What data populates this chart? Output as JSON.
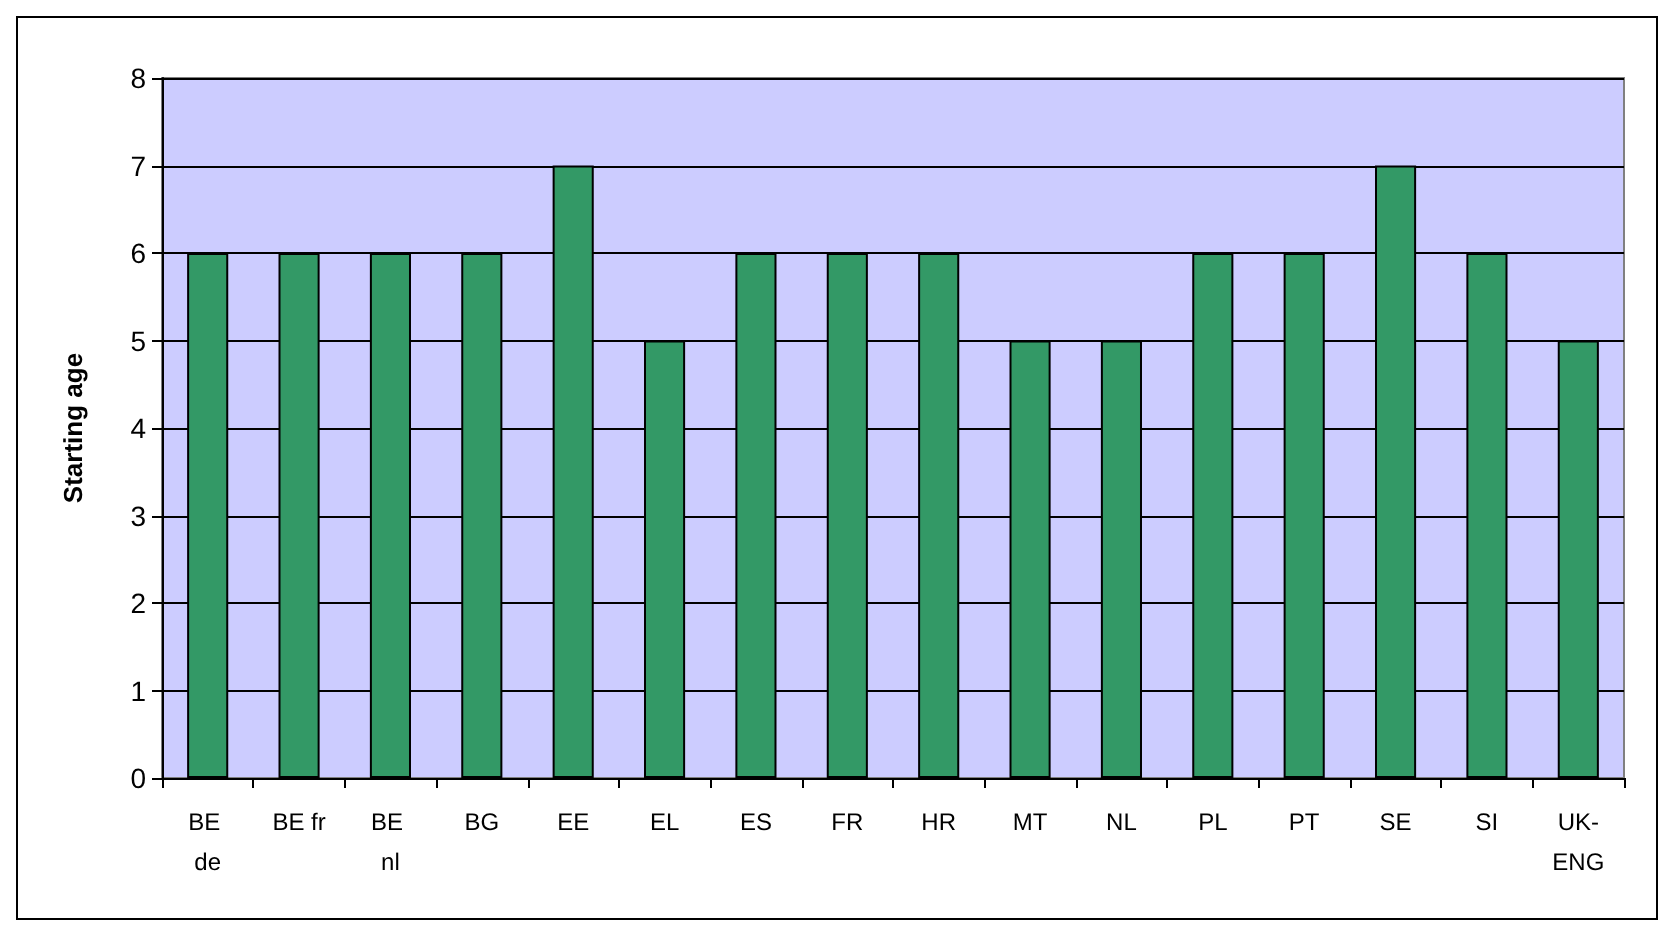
{
  "chart_data": {
    "type": "bar",
    "ylabel": "Starting age",
    "categories": [
      "BE de",
      "BE fr",
      "BE nl",
      "BG",
      "EE",
      "EL",
      "ES",
      "FR",
      "HR",
      "MT",
      "NL",
      "PL",
      "PT",
      "SE",
      "SI",
      "UK-ENG"
    ],
    "values": [
      6,
      6,
      6,
      6,
      7,
      5,
      6,
      6,
      6,
      5,
      5,
      6,
      6,
      7,
      6,
      5
    ],
    "color": "#339966",
    "ylim": [
      0,
      8
    ],
    "yticks": [
      0,
      1,
      2,
      3,
      4,
      5,
      6,
      7,
      8
    ],
    "grid": "y"
  }
}
